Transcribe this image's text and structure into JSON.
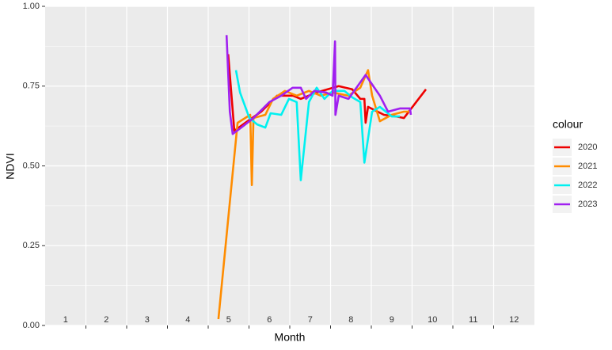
{
  "chart_data": {
    "type": "line",
    "xlabel": "Month",
    "ylabel": "NDVI",
    "legend_title": "colour",
    "legend": "right",
    "xlim": [
      0.5,
      12.5
    ],
    "ylim": [
      0,
      1
    ],
    "xticks": [
      1.5,
      2.5,
      3.5,
      4.5,
      5.5,
      6.5,
      7.5,
      8.5,
      9.5,
      10.5,
      11.5
    ],
    "month_labels": [
      1,
      2,
      3,
      4,
      5,
      6,
      7,
      8,
      9,
      10,
      11,
      12
    ],
    "yticks": [
      {
        "value": 0,
        "label": "0.00"
      },
      {
        "value": 0.25,
        "label": "0.25"
      },
      {
        "value": 0.5,
        "label": "0.50"
      },
      {
        "value": 0.75,
        "label": "0.75"
      },
      {
        "value": 1,
        "label": "1.00"
      }
    ],
    "minor_yticks": [
      0.125,
      0.375,
      0.625,
      0.875
    ],
    "grid": true,
    "series": [
      {
        "name": "2020",
        "color": "#ee0000",
        "x": [
          4.99,
          5.14,
          5.41,
          5.8,
          6.19,
          6.58,
          6.77,
          7.16,
          7.7,
          8.03,
          8.23,
          8.33,
          8.36,
          8.42,
          8.81,
          9.1,
          9.3,
          9.84
        ],
        "values": [
          0.85,
          0.61,
          0.635,
          0.67,
          0.72,
          0.72,
          0.71,
          0.73,
          0.75,
          0.74,
          0.71,
          0.71,
          0.635,
          0.685,
          0.66,
          0.655,
          0.65,
          0.74
        ]
      },
      {
        "name": "2021",
        "color": "#ff8c00",
        "x": [
          4.75,
          5.22,
          5.53,
          5.57,
          5.61,
          5.9,
          6.09,
          6.38,
          6.67,
          6.97,
          7.26,
          7.55,
          7.94,
          8.23,
          8.42,
          8.52,
          8.71,
          9.0,
          9.3,
          9.45
        ],
        "values": [
          0.02,
          0.635,
          0.66,
          0.44,
          0.65,
          0.66,
          0.71,
          0.735,
          0.72,
          0.735,
          0.72,
          0.73,
          0.72,
          0.745,
          0.8,
          0.72,
          0.64,
          0.66,
          0.67,
          0.67
        ]
      },
      {
        "name": "2022",
        "color": "#00f0f0",
        "x": [
          5.18,
          5.28,
          5.51,
          5.7,
          5.9,
          6.03,
          6.29,
          6.48,
          6.67,
          6.77,
          6.97,
          7.16,
          7.35,
          7.55,
          7.84,
          8.03,
          8.23,
          8.33,
          8.52,
          8.71,
          9.0,
          9.2
        ],
        "values": [
          0.8,
          0.73,
          0.65,
          0.63,
          0.62,
          0.665,
          0.66,
          0.71,
          0.7,
          0.455,
          0.7,
          0.745,
          0.71,
          0.735,
          0.735,
          0.715,
          0.7,
          0.51,
          0.67,
          0.685,
          0.655,
          0.655
        ]
      },
      {
        "name": "2023",
        "color": "#a020f0",
        "x": [
          4.95,
          5.03,
          5.1,
          5.31,
          5.61,
          6.0,
          6.29,
          6.57,
          6.77,
          6.9,
          7.1,
          7.39,
          7.55,
          7.61,
          7.62,
          7.7,
          7.94,
          8.36,
          8.71,
          8.91,
          9.2,
          9.45,
          9.47
        ],
        "values": [
          0.91,
          0.67,
          0.6,
          0.62,
          0.65,
          0.7,
          0.72,
          0.745,
          0.745,
          0.71,
          0.735,
          0.73,
          0.72,
          0.89,
          0.66,
          0.72,
          0.71,
          0.785,
          0.72,
          0.67,
          0.68,
          0.68,
          0.66
        ]
      }
    ]
  }
}
